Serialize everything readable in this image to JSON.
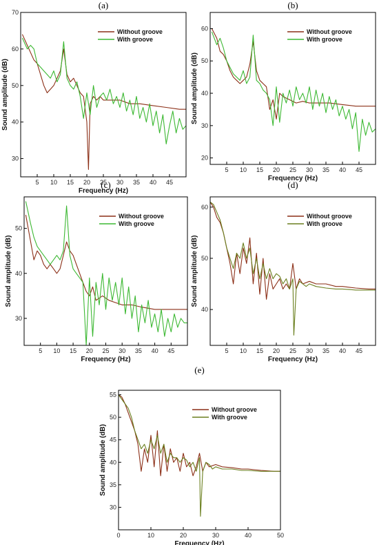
{
  "chart_data": [
    {
      "type": "line",
      "panel": "(a)",
      "xlabel": "Frequency (Hz)",
      "ylabel": "Sound amplitude (dB)",
      "xlim": [
        0,
        50
      ],
      "ylim": [
        25,
        70
      ],
      "xticks": [
        5,
        10,
        15,
        20,
        25,
        30,
        35,
        40,
        45
      ],
      "yticks": [
        30,
        40,
        50,
        60,
        70
      ],
      "grid": false,
      "legend_position": "top-right",
      "series": [
        {
          "name": "Without groove",
          "color": "#8b2e16",
          "x": [
            0.5,
            2,
            3,
            4,
            5,
            6,
            7,
            8,
            9,
            10,
            11,
            12,
            13,
            14,
            15,
            16,
            17,
            18,
            19,
            20,
            20.5,
            21,
            22,
            23,
            24,
            25,
            27,
            30,
            33,
            36,
            40,
            44,
            48,
            50
          ],
          "y": [
            64,
            61,
            59,
            57,
            56,
            53,
            50,
            48,
            49,
            50,
            52,
            54,
            60,
            53,
            51,
            52,
            50,
            48,
            47,
            40,
            27,
            45,
            47,
            46,
            47,
            46,
            46,
            46,
            45,
            45,
            44.5,
            44,
            43.5,
            43.5
          ]
        },
        {
          "name": "With groove",
          "color": "#3cb832",
          "x": [
            0.5,
            2,
            3,
            4,
            5,
            6,
            7,
            8,
            9,
            10,
            11,
            12,
            13,
            14,
            15,
            16,
            17,
            18,
            19,
            20,
            21,
            22,
            23,
            24,
            25,
            26,
            27,
            28,
            29,
            30,
            31,
            32,
            33,
            34,
            35,
            36,
            37,
            38,
            39,
            40,
            41,
            42,
            43,
            44,
            45,
            46,
            47,
            48,
            49,
            50
          ],
          "y": [
            63,
            60,
            61,
            60,
            56,
            55,
            54,
            53,
            52,
            54,
            51,
            53,
            62,
            52,
            50,
            49,
            51,
            47,
            41,
            48,
            42,
            50,
            44,
            47,
            48,
            46,
            49,
            45,
            47,
            44,
            48,
            43,
            46,
            42,
            47,
            41,
            44,
            40,
            45,
            39,
            43,
            37,
            42,
            34,
            39,
            43,
            37,
            41,
            38,
            39
          ]
        }
      ]
    },
    {
      "type": "line",
      "panel": "(b)",
      "xlabel": "Frequency (Hz)",
      "ylabel": "Sound amplitude (dB)",
      "xlim": [
        0,
        50
      ],
      "ylim": [
        18,
        65
      ],
      "xticks": [
        5,
        10,
        15,
        20,
        25,
        30,
        35,
        40,
        45
      ],
      "yticks": [
        20,
        30,
        40,
        50,
        60
      ],
      "grid": false,
      "legend_position": "top-right",
      "series": [
        {
          "name": "Without groove",
          "color": "#8b2e16",
          "x": [
            0.5,
            2,
            3,
            4,
            5,
            6,
            7,
            8,
            9,
            10,
            11,
            12,
            13,
            14,
            15,
            16,
            17,
            18,
            19,
            20,
            21,
            22,
            24,
            26,
            28,
            30,
            33,
            36,
            40,
            44,
            48,
            50
          ],
          "y": [
            60,
            57,
            53,
            52,
            50,
            47,
            45,
            44,
            43,
            44,
            45,
            49,
            56,
            47,
            44,
            43,
            42,
            35,
            38,
            32,
            40,
            39,
            38,
            37,
            37.5,
            37,
            37,
            37,
            36.5,
            36,
            36,
            36
          ]
        },
        {
          "name": "With groove",
          "color": "#3cb832",
          "x": [
            0.5,
            2,
            3,
            4,
            5,
            6,
            7,
            8,
            9,
            10,
            11,
            12,
            13,
            14,
            15,
            16,
            17,
            18,
            19,
            20,
            21,
            22,
            23,
            24,
            25,
            26,
            27,
            28,
            29,
            30,
            31,
            32,
            33,
            34,
            35,
            36,
            37,
            38,
            39,
            40,
            41,
            42,
            43,
            44,
            45,
            46,
            47,
            48,
            49,
            50
          ],
          "y": [
            59,
            55,
            57,
            54,
            50,
            48,
            46,
            45,
            44,
            47,
            43,
            45,
            58,
            44,
            43,
            41,
            40,
            38,
            30,
            42,
            31,
            40,
            37,
            41,
            36,
            42,
            38,
            40,
            37,
            42,
            35,
            41,
            36,
            40,
            34,
            39,
            35,
            38,
            33,
            36,
            32,
            35,
            29,
            34,
            22,
            32,
            27,
            31,
            28,
            29
          ]
        }
      ]
    },
    {
      "type": "line",
      "panel": "(c)",
      "xlabel": "Frequency (Hz)",
      "ylabel": "Sound amplitude (dB)",
      "xlim": [
        0,
        50
      ],
      "ylim": [
        24,
        57
      ],
      "xticks": [
        5,
        10,
        15,
        20,
        25,
        30,
        35,
        40,
        45
      ],
      "yticks": [
        30,
        40,
        50
      ],
      "grid": false,
      "legend_position": "top-right",
      "series": [
        {
          "name": "Without groove",
          "color": "#8b2e16",
          "x": [
            0.5,
            2,
            3,
            4,
            5,
            6,
            7,
            8,
            9,
            10,
            11,
            12,
            13,
            14,
            15,
            16,
            17,
            18,
            19,
            20,
            21,
            22,
            24,
            26,
            28,
            30,
            33,
            36,
            40,
            44,
            48,
            50
          ],
          "y": [
            53,
            47,
            43,
            45,
            44,
            42,
            41,
            42,
            41,
            40,
            41,
            44,
            47,
            45,
            44,
            42,
            40,
            38,
            36,
            35,
            37,
            34,
            35,
            34,
            33.5,
            33,
            33,
            32.5,
            32,
            32,
            32,
            32
          ]
        },
        {
          "name": "With groove",
          "color": "#3cb832",
          "x": [
            0.5,
            2,
            3,
            4,
            5,
            6,
            7,
            8,
            9,
            10,
            11,
            12,
            13,
            14,
            15,
            16,
            17,
            18,
            19,
            20,
            21,
            22,
            23,
            24,
            25,
            26,
            27,
            28,
            29,
            30,
            31,
            32,
            33,
            34,
            35,
            36,
            37,
            38,
            39,
            40,
            41,
            42,
            43,
            44,
            45,
            46,
            47,
            48,
            49,
            50
          ],
          "y": [
            56,
            51,
            48,
            46,
            45,
            44,
            43,
            42,
            43,
            44,
            43,
            45,
            55,
            44,
            41,
            40,
            39,
            38,
            24,
            39,
            26,
            38,
            33,
            40,
            32,
            39,
            34,
            38,
            33,
            39,
            31,
            37,
            30,
            35,
            27,
            33,
            29,
            34,
            28,
            31,
            27,
            32,
            26,
            30,
            27,
            31,
            28,
            30,
            29,
            29
          ]
        }
      ]
    },
    {
      "type": "line",
      "panel": "(d)",
      "xlabel": "Frequency (Hz)",
      "ylabel": "Sound amplitude (dB)",
      "xlim": [
        0,
        50
      ],
      "ylim": [
        33,
        62
      ],
      "xticks": [
        5,
        10,
        15,
        20,
        25,
        30,
        35,
        40,
        45
      ],
      "yticks": [
        40,
        50,
        60
      ],
      "grid": false,
      "legend_position": "top-right",
      "series": [
        {
          "name": "Without groove",
          "color": "#8b2e16",
          "x": [
            0,
            1,
            2,
            3,
            4,
            5,
            6,
            7,
            8,
            9,
            10,
            11,
            12,
            13,
            14,
            15,
            16,
            17,
            18,
            19,
            20,
            21,
            22,
            23,
            24,
            25,
            26,
            27,
            28,
            30,
            32,
            35,
            38,
            40,
            44,
            48,
            50
          ],
          "y": [
            61,
            60,
            58,
            57,
            55,
            52,
            49,
            45,
            51,
            47,
            52,
            49,
            54,
            45,
            51,
            43,
            50,
            42,
            47,
            44,
            45,
            46,
            44,
            45,
            44,
            49,
            44,
            46,
            45,
            45.5,
            45,
            45,
            44.5,
            44.5,
            44.2,
            44,
            44
          ]
        },
        {
          "name": "With groove",
          "color": "#6a7f1e",
          "x": [
            0,
            1,
            2,
            3,
            4,
            5,
            6,
            7,
            8,
            9,
            10,
            11,
            12,
            13,
            14,
            15,
            16,
            17,
            18,
            19,
            20,
            21,
            22,
            23,
            24,
            25,
            25.3,
            26,
            27,
            28,
            29,
            30,
            32,
            35,
            38,
            40,
            44,
            48,
            50
          ],
          "y": [
            61,
            60.5,
            59,
            57.5,
            55,
            52,
            50,
            48,
            51,
            50,
            53,
            50,
            52,
            47,
            50,
            46,
            49,
            46,
            48,
            46,
            47,
            46.5,
            45,
            46,
            44,
            46,
            35,
            44,
            45.5,
            45,
            44.5,
            45,
            44.5,
            44.2,
            44,
            44,
            43.8,
            43.8,
            43.8
          ]
        }
      ]
    },
    {
      "type": "line",
      "panel": "(e)",
      "xlabel": "Frequency (Hz)",
      "ylabel": "Sound amplitude (dB)",
      "xlim": [
        0,
        50
      ],
      "ylim": [
        25,
        56
      ],
      "xticks": [
        0,
        10,
        20,
        30,
        40,
        50
      ],
      "yticks": [
        30,
        35,
        40,
        45,
        50,
        55
      ],
      "grid": false,
      "legend_position": "top-right",
      "series": [
        {
          "name": "Without groove",
          "color": "#8b2e16",
          "x": [
            0,
            1,
            2,
            3,
            4,
            5,
            6,
            7,
            8,
            9,
            10,
            11,
            12,
            13,
            14,
            15,
            16,
            17,
            18,
            19,
            20,
            21,
            22,
            23,
            24,
            25,
            26,
            27,
            28,
            30,
            32,
            35,
            38,
            40,
            44,
            48,
            50
          ],
          "y": [
            55,
            54.5,
            53,
            51,
            49,
            47,
            44,
            38,
            43,
            40,
            46,
            39,
            47,
            37,
            44,
            38,
            43,
            40,
            41,
            38,
            42,
            39,
            40,
            37,
            39,
            42,
            38,
            40,
            39,
            39.5,
            39,
            38.8,
            38.5,
            38.5,
            38.2,
            38,
            38
          ]
        },
        {
          "name": "With groove",
          "color": "#6a7f1e",
          "x": [
            0,
            1,
            2,
            3,
            4,
            5,
            6,
            7,
            8,
            9,
            10,
            11,
            12,
            13,
            14,
            15,
            16,
            17,
            18,
            19,
            20,
            21,
            22,
            23,
            24,
            25,
            25.3,
            26,
            27,
            28,
            29,
            30,
            32,
            35,
            38,
            40,
            44,
            48,
            50
          ],
          "y": [
            55,
            54,
            53,
            52,
            50,
            47,
            45,
            43,
            44,
            42,
            45,
            43,
            46,
            42,
            44,
            40,
            42,
            41,
            41,
            40,
            41,
            40.5,
            39,
            40,
            38,
            41,
            28,
            38,
            40,
            39.5,
            38.5,
            39,
            38.5,
            38.5,
            38.2,
            38.2,
            38,
            38,
            38
          ]
        }
      ]
    }
  ]
}
